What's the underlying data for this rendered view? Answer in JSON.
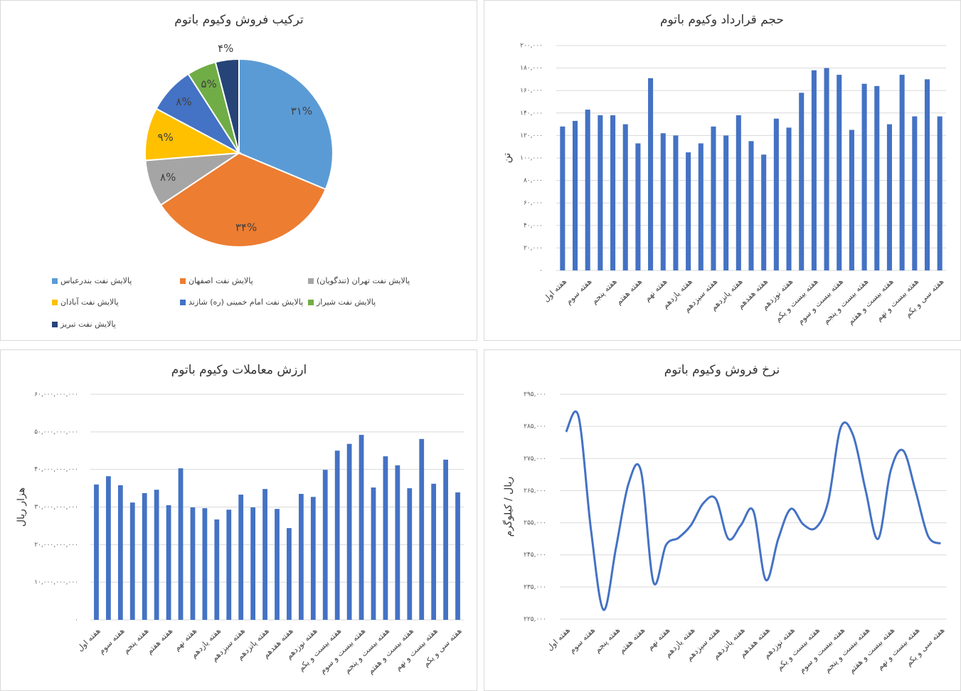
{
  "chart_data": [
    {
      "type": "pie",
      "title": "ترکیب فروش وکیوم باتوم",
      "categories": [
        "پالایش نفت بندرعباس",
        "پالایش نفت اصفهان",
        "پالایش نفت تهران (تندگویان)",
        "پالایش نفت آبادان",
        "پالایش نفت امام خمینی (ره) شازند",
        "پالایش نفت شیراز",
        "پالایش نفت تبریز"
      ],
      "values": [
        31,
        34,
        8,
        9,
        8,
        5,
        4
      ],
      "value_labels": [
        "۳۱%",
        "۳۴%",
        "۸%",
        "۹%",
        "۸%",
        "۵%",
        "۴%"
      ],
      "colors": [
        "#5b9bd5",
        "#ed7d31",
        "#a5a5a5",
        "#ffc000",
        "#4472c4",
        "#70ad47",
        "#264478"
      ],
      "legend": "bottom"
    },
    {
      "type": "bar",
      "title": "حجم قرارداد وکیوم باتوم",
      "ylabel": "تن",
      "categories": [
        "هفته اول",
        null,
        "هفته سوم",
        null,
        "هفته پنجم",
        null,
        "هفته هفتم",
        null,
        "هفته نهم",
        null,
        "هفته یازدهم",
        null,
        "هفته سیزدهم",
        null,
        "هفته پانزدهم",
        null,
        "هفته هفدهم",
        null,
        "هفته نوزدهم",
        null,
        "هفته بیست و یکم",
        null,
        "هفته بیست و سوم",
        null,
        "هفته بیست و پنجم",
        null,
        "هفته بیست و هفتم",
        null,
        "هفته بیست و نهم",
        null,
        "هفته سی و یکم"
      ],
      "values": [
        128000,
        133000,
        143000,
        138000,
        138000,
        130000,
        113000,
        171000,
        122000,
        120000,
        105000,
        113000,
        128000,
        120000,
        138000,
        115000,
        103000,
        135000,
        127000,
        158000,
        178000,
        180000,
        174000,
        125000,
        166000,
        164000,
        130000,
        174000,
        137000,
        170000,
        137000
      ],
      "color": "#4472c4",
      "ylim": [
        0,
        200000
      ],
      "yticks": [
        {
          "value": 0,
          "label": "۰"
        },
        {
          "value": 20000,
          "label": "۲۰,۰۰۰"
        },
        {
          "value": 40000,
          "label": "۴۰,۰۰۰"
        },
        {
          "value": 60000,
          "label": "۶۰,۰۰۰"
        },
        {
          "value": 80000,
          "label": "۸۰,۰۰۰"
        },
        {
          "value": 100000,
          "label": "۱۰۰,۰۰۰"
        },
        {
          "value": 120000,
          "label": "۱۲۰,۰۰۰"
        },
        {
          "value": 140000,
          "label": "۱۴۰,۰۰۰"
        },
        {
          "value": 160000,
          "label": "۱۶۰,۰۰۰"
        },
        {
          "value": 180000,
          "label": "۱۸۰,۰۰۰"
        },
        {
          "value": 200000,
          "label": "۲۰۰,۰۰۰"
        }
      ],
      "grid": true
    },
    {
      "type": "bar",
      "title": "ارزش معاملات وکیوم باتوم",
      "ylabel": "هزار ریال",
      "categories": [
        "هفته اول",
        null,
        "هفته سوم",
        null,
        "هفته پنجم",
        null,
        "هفته هفتم",
        null,
        "هفته نهم",
        null,
        "هفته یازدهم",
        null,
        "هفته سیزدهم",
        null,
        "هفته پانزدهم",
        null,
        "هفته هفدهم",
        null,
        "هفته نوزدهم",
        null,
        "هفته بیست و یکم",
        null,
        "هفته بیست و سوم",
        null,
        "هفته بیست و پنجم",
        null,
        "هفته بیست و هفتم",
        null,
        "هفته بیست و نهم",
        null,
        "هفته سی و یکم"
      ],
      "values": [
        36000000000,
        38200000000,
        35800000000,
        31200000000,
        33700000000,
        34600000000,
        30500000000,
        40300000000,
        29900000000,
        29700000000,
        26700000000,
        29300000000,
        33300000000,
        29900000000,
        34800000000,
        29500000000,
        24400000000,
        33500000000,
        32700000000,
        39900000000,
        45000000000,
        46800000000,
        49200000000,
        35200000000,
        43500000000,
        41100000000,
        35000000000,
        48100000000,
        36200000000,
        42600000000,
        33900000000
      ],
      "color": "#4472c4",
      "ylim": [
        0,
        60000000000
      ],
      "yticks": [
        {
          "value": 0,
          "label": "۰"
        },
        {
          "value": 10000000000,
          "label": "۱۰,۰۰۰,۰۰۰,۰۰۰"
        },
        {
          "value": 20000000000,
          "label": "۲۰,۰۰۰,۰۰۰,۰۰۰"
        },
        {
          "value": 30000000000,
          "label": "۳۰,۰۰۰,۰۰۰,۰۰۰"
        },
        {
          "value": 40000000000,
          "label": "۴۰,۰۰۰,۰۰۰,۰۰۰"
        },
        {
          "value": 50000000000,
          "label": "۵۰,۰۰۰,۰۰۰,۰۰۰"
        },
        {
          "value": 60000000000,
          "label": "۶۰,۰۰۰,۰۰۰,۰۰۰"
        }
      ],
      "grid": true
    },
    {
      "type": "line",
      "title": "نرخ فروش وکیوم باتوم",
      "ylabel": "ریال / کیلوگرم",
      "categories": [
        "هفته اول",
        null,
        "هفته سوم",
        null,
        "هفته پنجم",
        null,
        "هفته هفتم",
        null,
        "هفته نهم",
        null,
        "هفته یازدهم",
        null,
        "هفته سیزدهم",
        null,
        "هفته پانزدهم",
        null,
        "هفته هفدهم",
        null,
        "هفته نوزدهم",
        null,
        "هفته بیست و یکم",
        null,
        "هفته بیست و سوم",
        null,
        "هفته بیست و پنجم",
        null,
        "هفته بیست و هفتم",
        null,
        "هفته بیست و نهم",
        null,
        "هفته سی و یکم"
      ],
      "values": [
        283300,
        288100,
        252700,
        227900,
        247200,
        267100,
        271100,
        236500,
        248000,
        250300,
        254200,
        261100,
        262400,
        250000,
        254200,
        258700,
        237200,
        250000,
        259300,
        254500,
        253400,
        261600,
        284600,
        282200,
        265100,
        250000,
        271100,
        277500,
        264900,
        250900,
        248500
      ],
      "color": "#4472c4",
      "smooth": true,
      "ylim": [
        225000,
        295000
      ],
      "yticks": [
        {
          "value": 225000,
          "label": "۲۲۵,۰۰۰"
        },
        {
          "value": 235000,
          "label": "۲۳۵,۰۰۰"
        },
        {
          "value": 245000,
          "label": "۲۴۵,۰۰۰"
        },
        {
          "value": 255000,
          "label": "۲۵۵,۰۰۰"
        },
        {
          "value": 265000,
          "label": "۲۶۵,۰۰۰"
        },
        {
          "value": 275000,
          "label": "۲۷۵,۰۰۰"
        },
        {
          "value": 285000,
          "label": "۲۸۵,۰۰۰"
        },
        {
          "value": 295000,
          "label": "۲۹۵,۰۰۰"
        }
      ],
      "grid": true
    }
  ]
}
